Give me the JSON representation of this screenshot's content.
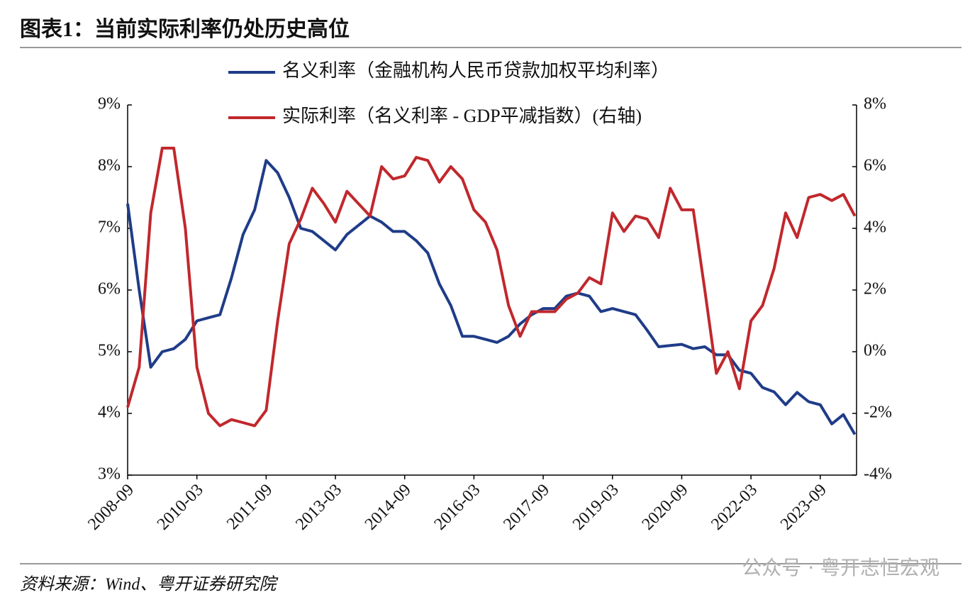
{
  "chart_data": {
    "type": "line",
    "title": "图表1：当前实际利率仍处历史高位",
    "source": "资料来源：Wind、粤开证券研究院",
    "watermark": "公众号 · 粤开志恒宏观",
    "categories": [
      "2008-09",
      null,
      null,
      null,
      null,
      null,
      "2010-03",
      null,
      null,
      null,
      null,
      null,
      "2011-09",
      null,
      null,
      null,
      null,
      null,
      "2013-03",
      null,
      null,
      null,
      null,
      null,
      "2014-09",
      null,
      null,
      null,
      null,
      null,
      "2016-03",
      null,
      null,
      null,
      null,
      null,
      "2017-09",
      null,
      null,
      null,
      null,
      null,
      "2019-03",
      null,
      null,
      null,
      null,
      null,
      "2020-09",
      null,
      null,
      null,
      null,
      null,
      "2022-03",
      null,
      null,
      null,
      null,
      null,
      "2023-09",
      null,
      null,
      null
    ],
    "series": [
      {
        "name": "名义利率（金融机构人民币贷款加权平均利率）",
        "color": "#1f3c88",
        "axis": "y",
        "values": [
          7.4,
          6.0,
          4.75,
          5.0,
          5.05,
          5.2,
          5.5,
          5.55,
          5.6,
          6.2,
          6.9,
          7.3,
          8.1,
          7.9,
          7.5,
          7.0,
          6.95,
          6.8,
          6.65,
          6.9,
          7.05,
          7.2,
          7.1,
          6.95,
          6.95,
          6.8,
          6.6,
          6.1,
          5.75,
          5.25,
          5.25,
          5.2,
          5.15,
          5.25,
          5.45,
          5.6,
          5.7,
          5.7,
          5.9,
          5.95,
          5.9,
          5.65,
          5.7,
          5.65,
          5.6,
          5.35,
          5.08,
          5.1,
          5.12,
          5.05,
          5.08,
          4.95,
          4.95,
          4.7,
          4.65,
          4.42,
          4.35,
          4.14,
          4.34,
          4.19,
          4.14,
          3.83,
          3.98,
          3.66
        ]
      },
      {
        "name": "实际利率（名义利率 - GDP平减指数）(右轴)",
        "color": "#c0282d",
        "axis": "y2",
        "values": [
          -1.8,
          -0.5,
          4.5,
          6.6,
          6.6,
          4.0,
          -0.5,
          -2.0,
          -2.4,
          -2.2,
          -2.3,
          -2.4,
          -1.9,
          1.0,
          3.5,
          4.3,
          5.3,
          4.8,
          4.2,
          5.2,
          4.8,
          4.4,
          6.0,
          5.6,
          5.7,
          6.3,
          6.2,
          5.5,
          6.0,
          5.6,
          4.6,
          4.2,
          3.3,
          1.5,
          0.5,
          1.3,
          1.3,
          1.3,
          1.7,
          1.9,
          2.4,
          2.2,
          4.5,
          3.9,
          4.4,
          4.3,
          3.7,
          5.3,
          4.6,
          4.6,
          2.0,
          -0.7,
          0.0,
          -1.2,
          1.0,
          1.5,
          2.7,
          4.5,
          3.7,
          5.0,
          5.1,
          4.9,
          5.1,
          4.4
        ]
      }
    ],
    "ylim": [
      3,
      9
    ],
    "yticks": [
      {
        "value": 3,
        "label": "3%"
      },
      {
        "value": 4,
        "label": "4%"
      },
      {
        "value": 5,
        "label": "5%"
      },
      {
        "value": 6,
        "label": "6%"
      },
      {
        "value": 7,
        "label": "7%"
      },
      {
        "value": 8,
        "label": "8%"
      },
      {
        "value": 9,
        "label": "9%"
      }
    ],
    "y2lim": [
      -4,
      8
    ],
    "y2ticks": [
      {
        "value": -4,
        "label": "-4%"
      },
      {
        "value": -2,
        "label": "-2%"
      },
      {
        "value": 0,
        "label": "0%"
      },
      {
        "value": 2,
        "label": "2%"
      },
      {
        "value": 4,
        "label": "4%"
      },
      {
        "value": 6,
        "label": "6%"
      },
      {
        "value": 8,
        "label": "8%"
      }
    ],
    "grid": false
  }
}
